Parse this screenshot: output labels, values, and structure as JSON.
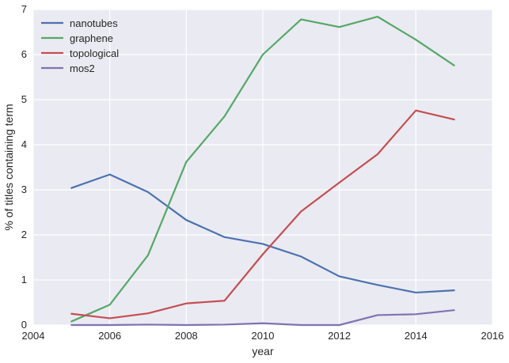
{
  "chart_data": {
    "type": "line",
    "title": "",
    "xlabel": "year",
    "ylabel": "% of titles containing term",
    "xlim": [
      2004,
      2016
    ],
    "ylim": [
      0,
      7
    ],
    "xticks": [
      2004,
      2006,
      2008,
      2010,
      2012,
      2014,
      2016
    ],
    "yticks": [
      0,
      1,
      2,
      3,
      4,
      5,
      6,
      7
    ],
    "grid": true,
    "legend_position": "top-left",
    "background_color": "#eaeaf2",
    "x": [
      2005,
      2006,
      2007,
      2008,
      2009,
      2010,
      2011,
      2012,
      2013,
      2014,
      2015
    ],
    "series": [
      {
        "name": "nanotubes",
        "color": "#4c72b0",
        "values": [
          3.04,
          3.34,
          2.95,
          2.33,
          1.95,
          1.8,
          1.52,
          1.08,
          0.89,
          0.72,
          0.77
        ]
      },
      {
        "name": "graphene",
        "color": "#55a868",
        "values": [
          0.08,
          0.45,
          1.55,
          3.62,
          4.63,
          6.0,
          6.78,
          6.61,
          6.84,
          6.33,
          5.76
        ]
      },
      {
        "name": "topological",
        "color": "#c44e52",
        "values": [
          0.25,
          0.15,
          0.26,
          0.48,
          0.54,
          1.57,
          2.52,
          3.16,
          3.79,
          4.76,
          4.56
        ]
      },
      {
        "name": "mos2",
        "color": "#8172b2",
        "values": [
          0.0,
          0.0,
          0.01,
          0.0,
          0.01,
          0.04,
          0.0,
          0.0,
          0.22,
          0.24,
          0.33
        ]
      }
    ]
  }
}
